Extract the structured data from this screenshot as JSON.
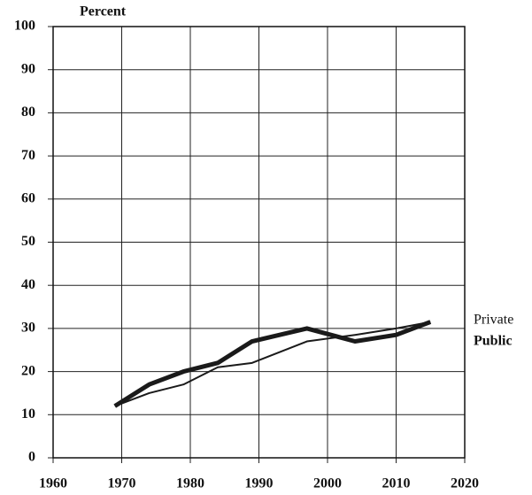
{
  "chart_data": {
    "type": "line",
    "y_label": "Percent",
    "x": [
      1969,
      1974,
      1979,
      1984,
      1989,
      1997,
      2004,
      2010,
      2015
    ],
    "series": [
      {
        "name": "Private",
        "color": "#1a1a1a",
        "values": [
          12,
          15,
          17,
          21,
          22,
          27,
          28.5,
          30,
          31.5
        ]
      },
      {
        "name": "Public",
        "color": "#1a1a1a",
        "values": [
          12,
          17,
          20,
          22,
          27,
          30,
          27,
          28.5,
          31.5
        ]
      }
    ],
    "xlim": [
      1960,
      2020
    ],
    "xticks": [
      1960,
      1970,
      1980,
      1990,
      2000,
      2010,
      2020
    ],
    "ylim": [
      0,
      100
    ],
    "yticks": [
      0,
      10,
      20,
      30,
      40,
      50,
      60,
      70,
      80,
      90,
      100
    ],
    "grid": true
  }
}
